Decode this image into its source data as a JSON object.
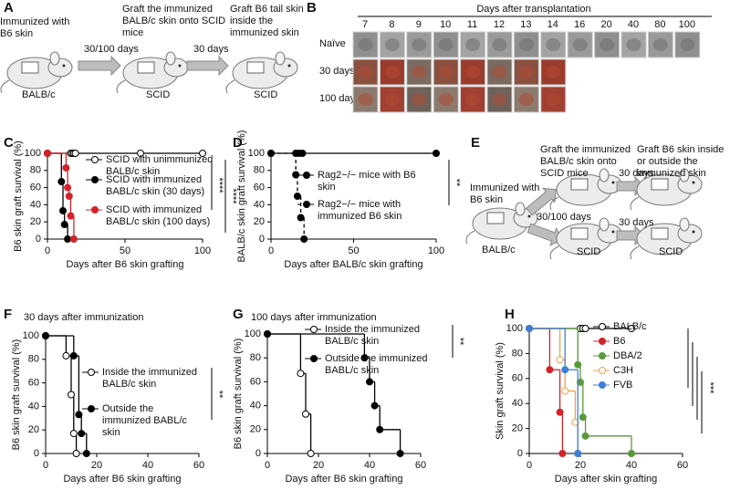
{
  "panel_labels": [
    "A",
    "B",
    "C",
    "D",
    "E",
    "F",
    "G",
    "H"
  ],
  "panel_a": {
    "step1": "Immunized with B6 skin",
    "arrow1": "30/100 days",
    "step2": "Graft the immunized BALB/c skin onto SCID mice",
    "arrow2": "30 days",
    "step3": "Graft B6 tail skin inside the immunized skin",
    "mouse1": "BALB/c",
    "mouse2": "SCID",
    "mouse3": "SCID"
  },
  "panel_b": {
    "title": "Days after transplantation",
    "columns": [
      7,
      8,
      9,
      10,
      11,
      12,
      13,
      14,
      16,
      20,
      40,
      80,
      100
    ],
    "rows": [
      "Naïve",
      "30 days",
      "100 days"
    ]
  },
  "panel_e": {
    "step1": "Immunized with B6 skin",
    "arrow1": "30/100 days",
    "step2": "Graft the immunized BALB/c skin onto SCID mice",
    "arrow2": "30 days",
    "arrow3": "30 days",
    "step3": "Graft B6 skin inside or outside the immunized skin",
    "mouse1": "BALB/c",
    "mouse2": "SCID",
    "mouse3": "SCID"
  },
  "chart_data": [
    {
      "type": "step",
      "xlabel": "Days after B6 skin grafting",
      "ylabel": "B6 skin graft survival  (%)",
      "xlim": [
        0,
        100
      ],
      "ylim": [
        0,
        100
      ],
      "xticks": [
        0,
        50,
        100
      ],
      "yticks": [
        0,
        20,
        40,
        60,
        80,
        100
      ],
      "series": [
        {
          "name": "SCID with unimmunized BALB/c skin",
          "color": "#000000",
          "open": true,
          "x": [
            0,
            15,
            16,
            17,
            18,
            60,
            100
          ],
          "values": [
            100,
            100,
            100,
            100,
            100,
            100,
            100
          ]
        },
        {
          "name": "SCID with immunized BABL/c skin (30 days)",
          "color": "#000000",
          "open": false,
          "x": [
            0,
            9,
            10,
            11,
            13
          ],
          "values": [
            100,
            67,
            33,
            17,
            0
          ]
        },
        {
          "name": "SCID with immunized BABL/c skin (100 days)",
          "color": "#d2232a",
          "open": false,
          "x": [
            0,
            12,
            13,
            14,
            15,
            17
          ],
          "values": [
            100,
            83,
            60,
            50,
            27,
            0
          ]
        }
      ],
      "significance": [
        "****",
        "****"
      ]
    },
    {
      "type": "step",
      "xlabel": "Days after BALB/c skin grafting",
      "ylabel": "BALB/c skin graft survival (%)",
      "xlim": [
        0,
        100
      ],
      "ylim": [
        0,
        100
      ],
      "xticks": [
        0,
        50,
        100
      ],
      "yticks": [
        0,
        20,
        40,
        60,
        80,
        100
      ],
      "series": [
        {
          "name": "Rag2−/− mice with B6 skin",
          "color": "#000000",
          "open": false,
          "x": [
            0,
            15,
            17,
            19,
            100
          ],
          "values": [
            100,
            100,
            100,
            100,
            100
          ]
        },
        {
          "name": "Rag2−/− mice with immunized B6 skin",
          "color": "#000000",
          "open": false,
          "dashed": true,
          "x": [
            0,
            15,
            16,
            18,
            20
          ],
          "values": [
            100,
            75,
            50,
            25,
            0
          ]
        }
      ],
      "significance": [
        "**"
      ]
    },
    {
      "type": "step",
      "title": "30 days after immunization",
      "xlabel": "Days after B6 skin grafting",
      "ylabel": "B6 skin graft survival  (%)",
      "xlim": [
        0,
        60
      ],
      "ylim": [
        0,
        100
      ],
      "xticks": [
        0,
        20,
        40,
        60
      ],
      "yticks": [
        0,
        20,
        40,
        60,
        80,
        100
      ],
      "series": [
        {
          "name": "Inside the immunized BALB/c skin",
          "color": "#000000",
          "open": true,
          "x": [
            0,
            8,
            10,
            11,
            12
          ],
          "values": [
            100,
            83,
            50,
            17,
            0
          ]
        },
        {
          "name": "Outside the immunized BABL/c skin",
          "color": "#000000",
          "open": false,
          "x": [
            0,
            11,
            13,
            14,
            16
          ],
          "values": [
            100,
            83,
            33,
            17,
            0
          ]
        }
      ],
      "significance": [
        "**"
      ]
    },
    {
      "type": "step",
      "title": "100 days after immunization",
      "xlabel": "Days after B6 skin grafting",
      "ylabel": "B6 skin graft survival  (%)",
      "xlim": [
        0,
        60
      ],
      "ylim": [
        0,
        100
      ],
      "xticks": [
        0,
        20,
        40,
        60
      ],
      "yticks": [
        0,
        20,
        40,
        60,
        80,
        100
      ],
      "series": [
        {
          "name": "Inside the immunized BALB/c skin",
          "color": "#000000",
          "open": true,
          "x": [
            0,
            13,
            15,
            17
          ],
          "values": [
            100,
            67,
            33,
            0
          ]
        },
        {
          "name": "Outside the immunized BABL/c skin",
          "color": "#000000",
          "open": false,
          "x": [
            0,
            38,
            40,
            42,
            44,
            52
          ],
          "values": [
            100,
            80,
            60,
            40,
            20,
            0
          ]
        }
      ],
      "significance": [
        "**"
      ]
    },
    {
      "type": "step",
      "xlabel": "Days after skin grafting",
      "ylabel": "Skin graft survival  (%)",
      "xlim": [
        0,
        60
      ],
      "ylim": [
        0,
        100
      ],
      "xticks": [
        0,
        20,
        40,
        60
      ],
      "yticks": [
        0,
        20,
        40,
        60,
        80,
        100
      ],
      "series": [
        {
          "name": "BALB/c",
          "color": "#000000",
          "open": true,
          "x": [
            0,
            20,
            21,
            22,
            40
          ],
          "values": [
            100,
            100,
            100,
            100,
            100
          ]
        },
        {
          "name": "B6",
          "color": "#d2232a",
          "open": false,
          "x": [
            0,
            8,
            12,
            13
          ],
          "values": [
            100,
            67,
            33,
            0
          ]
        },
        {
          "name": "DBA/2",
          "color": "#5a9a3a",
          "open": false,
          "x": [
            0,
            19,
            20,
            21,
            22,
            40
          ],
          "values": [
            100,
            71,
            57,
            29,
            14,
            0
          ]
        },
        {
          "name": "C3H",
          "color": "#f0a050",
          "open": true,
          "x": [
            0,
            12,
            14,
            18,
            19
          ],
          "values": [
            100,
            75,
            50,
            25,
            0
          ]
        },
        {
          "name": "FVB",
          "color": "#3d7fd6",
          "open": false,
          "x": [
            0,
            14,
            19
          ],
          "values": [
            100,
            67,
            0
          ]
        }
      ],
      "significance": [
        "***"
      ]
    }
  ]
}
